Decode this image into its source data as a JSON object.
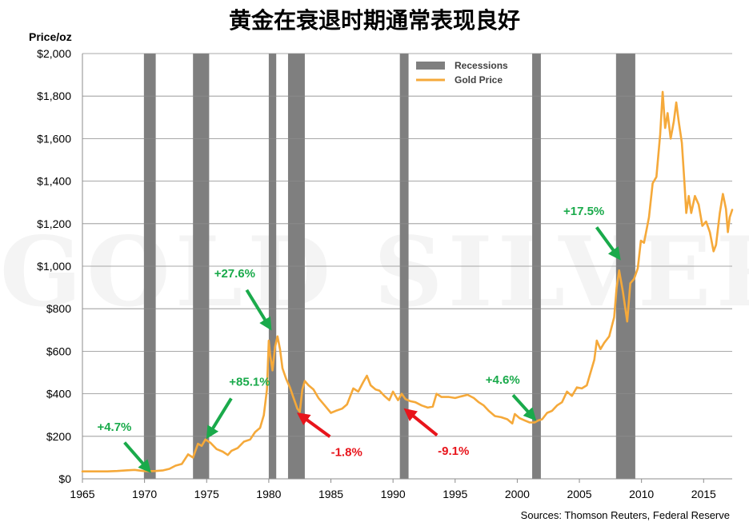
{
  "chart_data": {
    "type": "line",
    "title": "黄金在衰退时期通常表现良好",
    "y_unit": "Price/oz",
    "xlim": [
      1965,
      2017.3
    ],
    "ylim": [
      0,
      2000
    ],
    "grid": true,
    "x_ticks": [
      1965,
      1970,
      1975,
      1980,
      1985,
      1990,
      1995,
      2000,
      2005,
      2010,
      2015
    ],
    "y_ticks": [
      {
        "value": 0,
        "label": "$0"
      },
      {
        "value": 200,
        "label": "$200"
      },
      {
        "value": 400,
        "label": "$400"
      },
      {
        "value": 600,
        "label": "$600"
      },
      {
        "value": 800,
        "label": "$800"
      },
      {
        "value": 1000,
        "label": "$1,000"
      },
      {
        "value": 1200,
        "label": "$1,200"
      },
      {
        "value": 1400,
        "label": "$1,400"
      },
      {
        "value": 1600,
        "label": "$1,600"
      },
      {
        "value": 1800,
        "label": "$1,800"
      },
      {
        "value": 2000,
        "label": "$2,000"
      }
    ],
    "legend": {
      "placement": "top-center",
      "entries": [
        {
          "name": "Recessions",
          "color": "#7f7f7f",
          "kind": "bar"
        },
        {
          "name": "Gold Price",
          "color": "#f5a93a",
          "kind": "line"
        }
      ]
    },
    "recessions": [
      {
        "start": 1969.95,
        "end": 1970.9
      },
      {
        "start": 1973.9,
        "end": 1975.2
      },
      {
        "start": 1980.0,
        "end": 1980.6
      },
      {
        "start": 1981.55,
        "end": 1982.9
      },
      {
        "start": 1990.55,
        "end": 1991.25
      },
      {
        "start": 2001.2,
        "end": 2001.9
      },
      {
        "start": 2007.95,
        "end": 2009.5
      }
    ],
    "series": [
      {
        "name": "Gold Price",
        "color": "#f5a93a",
        "points": [
          [
            1965.0,
            35
          ],
          [
            1966.0,
            35
          ],
          [
            1967.0,
            35
          ],
          [
            1967.8,
            37
          ],
          [
            1968.5,
            40
          ],
          [
            1969.2,
            42
          ],
          [
            1969.9,
            37
          ],
          [
            1970.4,
            36
          ],
          [
            1970.9,
            37
          ],
          [
            1971.5,
            40
          ],
          [
            1972.0,
            47
          ],
          [
            1972.5,
            62
          ],
          [
            1973.0,
            70
          ],
          [
            1973.5,
            115
          ],
          [
            1973.9,
            100
          ],
          [
            1974.3,
            165
          ],
          [
            1974.6,
            155
          ],
          [
            1974.9,
            185
          ],
          [
            1975.3,
            170
          ],
          [
            1975.8,
            140
          ],
          [
            1976.3,
            128
          ],
          [
            1976.7,
            112
          ],
          [
            1977.0,
            132
          ],
          [
            1977.5,
            145
          ],
          [
            1978.0,
            175
          ],
          [
            1978.5,
            185
          ],
          [
            1978.9,
            220
          ],
          [
            1979.3,
            240
          ],
          [
            1979.6,
            300
          ],
          [
            1979.85,
            420
          ],
          [
            1980.0,
            650
          ],
          [
            1980.1,
            590
          ],
          [
            1980.3,
            510
          ],
          [
            1980.5,
            620
          ],
          [
            1980.7,
            670
          ],
          [
            1980.9,
            610
          ],
          [
            1981.1,
            520
          ],
          [
            1981.4,
            470
          ],
          [
            1981.7,
            430
          ],
          [
            1982.0,
            380
          ],
          [
            1982.3,
            330
          ],
          [
            1982.5,
            315
          ],
          [
            1982.7,
            420
          ],
          [
            1982.9,
            460
          ],
          [
            1983.2,
            440
          ],
          [
            1983.6,
            420
          ],
          [
            1984.0,
            380
          ],
          [
            1984.5,
            345
          ],
          [
            1985.0,
            310
          ],
          [
            1985.4,
            320
          ],
          [
            1985.9,
            330
          ],
          [
            1986.3,
            350
          ],
          [
            1986.8,
            425
          ],
          [
            1987.2,
            410
          ],
          [
            1987.6,
            455
          ],
          [
            1987.9,
            485
          ],
          [
            1988.2,
            440
          ],
          [
            1988.6,
            420
          ],
          [
            1988.9,
            415
          ],
          [
            1989.3,
            390
          ],
          [
            1989.7,
            370
          ],
          [
            1990.0,
            410
          ],
          [
            1990.4,
            370
          ],
          [
            1990.7,
            400
          ],
          [
            1991.0,
            375
          ],
          [
            1991.4,
            365
          ],
          [
            1991.8,
            360
          ],
          [
            1992.3,
            345
          ],
          [
            1992.8,
            335
          ],
          [
            1993.2,
            340
          ],
          [
            1993.5,
            400
          ],
          [
            1993.9,
            385
          ],
          [
            1994.5,
            385
          ],
          [
            1995.0,
            380
          ],
          [
            1995.5,
            388
          ],
          [
            1996.0,
            395
          ],
          [
            1996.5,
            380
          ],
          [
            1996.9,
            360
          ],
          [
            1997.3,
            345
          ],
          [
            1997.7,
            320
          ],
          [
            1998.2,
            295
          ],
          [
            1998.7,
            290
          ],
          [
            1999.2,
            280
          ],
          [
            1999.6,
            260
          ],
          [
            1999.8,
            305
          ],
          [
            2000.2,
            285
          ],
          [
            2000.6,
            275
          ],
          [
            2001.0,
            265
          ],
          [
            2001.4,
            265
          ],
          [
            2001.7,
            275
          ],
          [
            2002.0,
            280
          ],
          [
            2002.4,
            310
          ],
          [
            2002.8,
            320
          ],
          [
            2003.2,
            345
          ],
          [
            2003.6,
            360
          ],
          [
            2004.0,
            410
          ],
          [
            2004.4,
            390
          ],
          [
            2004.8,
            430
          ],
          [
            2005.2,
            425
          ],
          [
            2005.6,
            440
          ],
          [
            2005.9,
            500
          ],
          [
            2006.2,
            560
          ],
          [
            2006.4,
            650
          ],
          [
            2006.7,
            610
          ],
          [
            2007.0,
            640
          ],
          [
            2007.4,
            670
          ],
          [
            2007.8,
            760
          ],
          [
            2008.0,
            900
          ],
          [
            2008.2,
            980
          ],
          [
            2008.5,
            880
          ],
          [
            2008.7,
            800
          ],
          [
            2008.85,
            740
          ],
          [
            2009.1,
            920
          ],
          [
            2009.4,
            940
          ],
          [
            2009.7,
            990
          ],
          [
            2009.95,
            1120
          ],
          [
            2010.2,
            1110
          ],
          [
            2010.6,
            1230
          ],
          [
            2010.9,
            1390
          ],
          [
            2011.2,
            1420
          ],
          [
            2011.5,
            1620
          ],
          [
            2011.7,
            1820
          ],
          [
            2011.9,
            1650
          ],
          [
            2012.1,
            1720
          ],
          [
            2012.35,
            1600
          ],
          [
            2012.6,
            1680
          ],
          [
            2012.8,
            1770
          ],
          [
            2013.0,
            1680
          ],
          [
            2013.25,
            1580
          ],
          [
            2013.45,
            1400
          ],
          [
            2013.6,
            1250
          ],
          [
            2013.8,
            1330
          ],
          [
            2014.0,
            1250
          ],
          [
            2014.3,
            1330
          ],
          [
            2014.6,
            1290
          ],
          [
            2014.9,
            1190
          ],
          [
            2015.2,
            1210
          ],
          [
            2015.5,
            1160
          ],
          [
            2015.8,
            1070
          ],
          [
            2016.0,
            1100
          ],
          [
            2016.3,
            1250
          ],
          [
            2016.55,
            1340
          ],
          [
            2016.8,
            1270
          ],
          [
            2016.95,
            1160
          ],
          [
            2017.1,
            1230
          ],
          [
            2017.3,
            1265
          ]
        ]
      }
    ],
    "annotations": [
      {
        "text": "+4.7%",
        "color": "#1aaa4b",
        "x": 1970.5,
        "y": 30
      },
      {
        "text": "+85.1%",
        "color": "#1aaa4b",
        "x": 1975.0,
        "y": 190
      },
      {
        "text": "+27.6%",
        "color": "#1aaa4b",
        "x": 1980.2,
        "y": 700
      },
      {
        "text": "-1.8%",
        "color": "#e8141b",
        "x": 1982.3,
        "y": 310
      },
      {
        "text": "-9.1%",
        "color": "#e8141b",
        "x": 1990.9,
        "y": 330
      },
      {
        "text": "+4.6%",
        "color": "#1aaa4b",
        "x": 2001.5,
        "y": 275
      },
      {
        "text": "+17.5%",
        "color": "#1aaa4b",
        "x": 2008.3,
        "y": 1030
      }
    ],
    "source": "Sources: Thomson Reuters, Federal Reserve",
    "watermark": "GOLD SILVER"
  }
}
